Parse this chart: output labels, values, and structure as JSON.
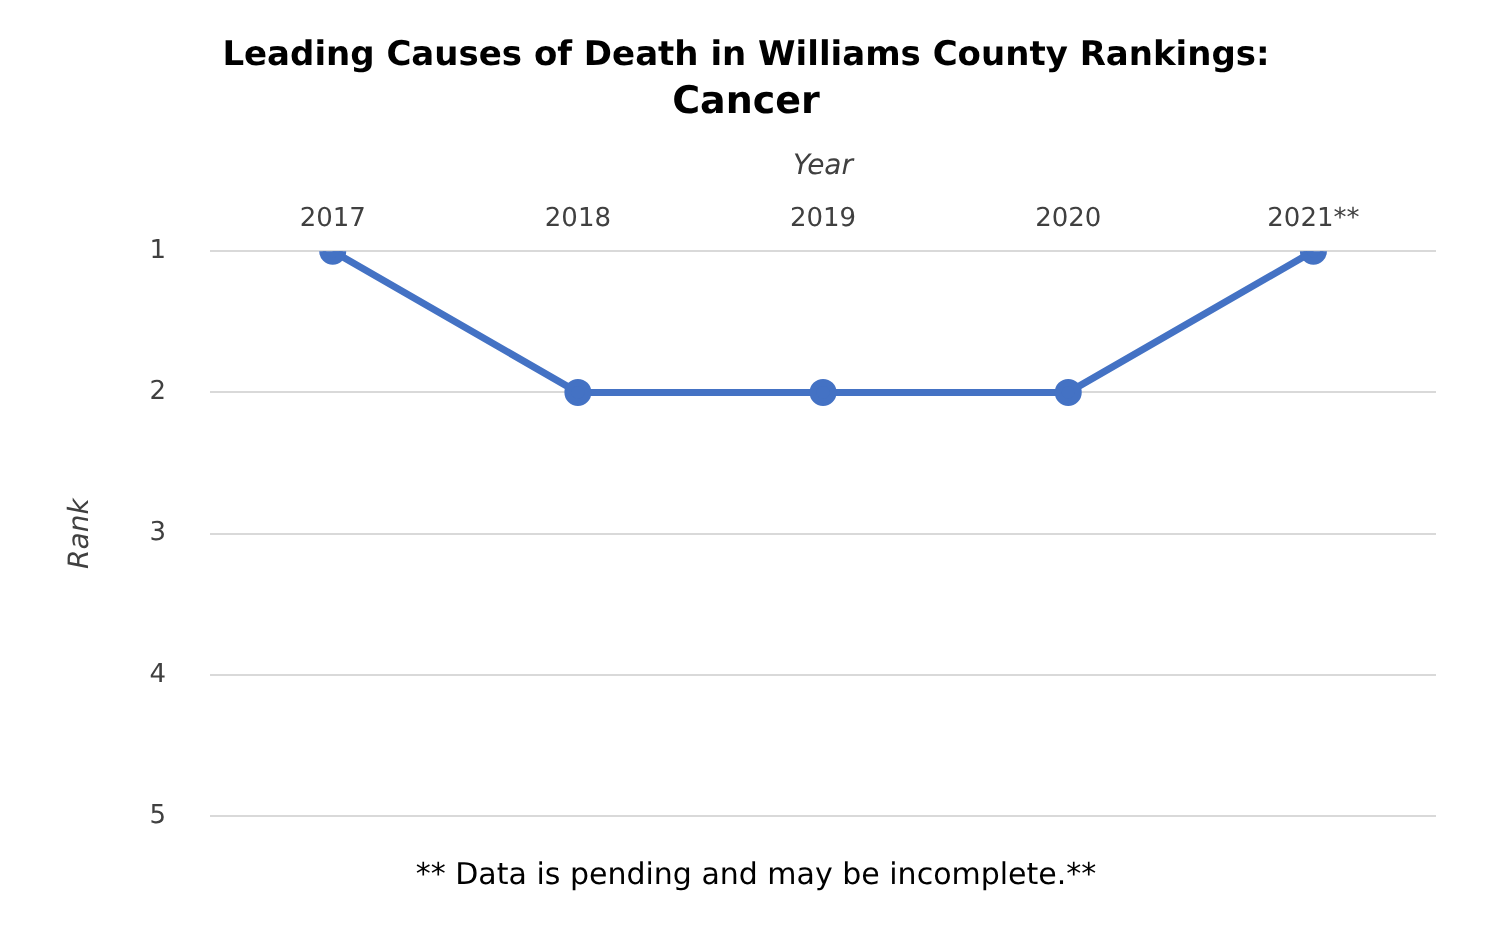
{
  "chart_data": {
    "type": "line",
    "title": "Leading Causes of Death in Williams County Rankings:",
    "subtitle": "Cancer",
    "xlabel": "Year",
    "ylabel": "Rank",
    "categories": [
      "2017",
      "2018",
      "2019",
      "2020",
      "2021**"
    ],
    "series": [
      {
        "color": "#4472c4",
        "values": [
          1,
          2,
          2,
          2,
          1
        ]
      }
    ],
    "ylim": [
      5,
      1
    ],
    "yticks": [
      1,
      2,
      3,
      4,
      5
    ],
    "grid": "y",
    "legend": false,
    "marker": "circle",
    "line_style": "solid",
    "annotations": [
      "** Data is pending and may be incomplete.**"
    ]
  }
}
